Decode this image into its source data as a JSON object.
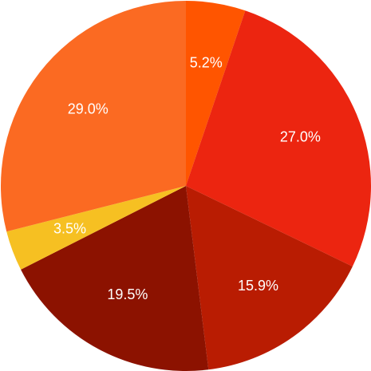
{
  "chart_data": {
    "type": "pie",
    "values": [
      5.2,
      27.0,
      15.9,
      19.5,
      3.5,
      29.0
    ],
    "value_labels": [
      "5.2%",
      "27.0%",
      "15.9%",
      "19.5%",
      "3.5%",
      "29.0%"
    ],
    "colors": [
      "#ff5500",
      "#ec2510",
      "#b91c02",
      "#8c1200",
      "#f6c022",
      "#fb6a22"
    ]
  }
}
